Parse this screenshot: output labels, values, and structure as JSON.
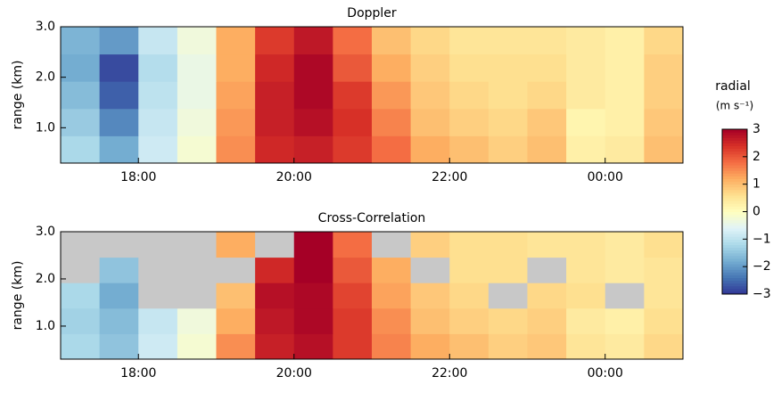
{
  "chart_data": [
    {
      "type": "heatmap",
      "title": "Doppler",
      "y_label": "range (km)",
      "x": [
        17.25,
        17.75,
        18.25,
        18.75,
        19.25,
        19.75,
        20.25,
        20.75,
        21.25,
        21.75,
        22.25,
        22.75,
        23.25,
        23.75,
        24.25,
        24.75
      ],
      "y": [
        0.57,
        1.11,
        1.65,
        2.19,
        2.73
      ],
      "values": [
        [
          -1.2,
          -1.8,
          -0.8,
          -0.2,
          1.5,
          2.5,
          2.6,
          2.3,
          1.8,
          1.2,
          1.0,
          0.8,
          1.0,
          0.3,
          0.4,
          1.0
        ],
        [
          -1.4,
          -2.2,
          -0.9,
          -0.3,
          1.4,
          2.6,
          2.8,
          2.4,
          1.6,
          1.0,
          0.8,
          0.7,
          0.9,
          0.2,
          0.3,
          0.9
        ],
        [
          -1.6,
          -2.6,
          -1.0,
          -0.4,
          1.3,
          2.6,
          2.9,
          2.3,
          1.4,
          0.9,
          0.7,
          0.6,
          0.7,
          0.4,
          0.3,
          0.8
        ],
        [
          -1.8,
          -2.8,
          -1.1,
          -0.4,
          1.2,
          2.5,
          2.9,
          2.0,
          1.2,
          0.8,
          0.6,
          0.6,
          0.6,
          0.4,
          0.3,
          0.8
        ],
        [
          -1.7,
          -2.0,
          -0.9,
          -0.3,
          1.2,
          2.3,
          2.7,
          1.8,
          1.0,
          0.7,
          0.5,
          0.5,
          0.5,
          0.4,
          0.3,
          0.7
        ]
      ],
      "xlim": [
        17.0,
        25.0
      ],
      "ylim": [
        0.3,
        3.0
      ],
      "xticks": [
        {
          "value": 18,
          "label": "18:00"
        },
        {
          "value": 20,
          "label": "20:00"
        },
        {
          "value": 22,
          "label": "22:00"
        },
        {
          "value": 24,
          "label": "00:00"
        }
      ],
      "yticks": [
        {
          "value": 1,
          "label": "1.0"
        },
        {
          "value": 2,
          "label": "2.0"
        },
        {
          "value": 3,
          "label": "3.0"
        }
      ]
    },
    {
      "type": "heatmap",
      "title": "Cross-Correlation",
      "y_label": "range (km)",
      "x": [
        17.25,
        17.75,
        18.25,
        18.75,
        19.25,
        19.75,
        20.25,
        20.75,
        21.25,
        21.75,
        22.25,
        22.75,
        23.25,
        23.75,
        24.25,
        24.75
      ],
      "y": [
        0.57,
        1.11,
        1.65,
        2.19,
        2.73
      ],
      "values": [
        [
          -1.2,
          -1.5,
          -0.8,
          -0.2,
          1.5,
          2.6,
          2.8,
          2.3,
          1.6,
          1.2,
          1.0,
          0.8,
          0.9,
          0.5,
          0.4,
          0.7
        ],
        [
          -1.3,
          -1.6,
          -0.9,
          -0.3,
          1.2,
          2.7,
          2.9,
          2.3,
          1.5,
          1.0,
          0.8,
          0.7,
          0.8,
          0.4,
          0.3,
          0.6
        ],
        [
          -1.2,
          -1.8,
          null,
          null,
          1.0,
          2.8,
          2.9,
          2.2,
          1.3,
          0.9,
          0.7,
          null,
          0.7,
          0.6,
          null,
          0.5
        ],
        [
          null,
          -1.5,
          null,
          null,
          null,
          2.5,
          3.0,
          2.0,
          1.2,
          null,
          0.6,
          0.6,
          null,
          0.5,
          0.4,
          0.5
        ],
        [
          null,
          null,
          null,
          null,
          1.2,
          null,
          3.0,
          1.8,
          null,
          0.8,
          0.6,
          0.6,
          0.5,
          0.5,
          0.4,
          0.6
        ]
      ],
      "xlim": [
        17.0,
        25.0
      ],
      "ylim": [
        0.3,
        3.0
      ],
      "xticks": [
        {
          "value": 18,
          "label": "18:00"
        },
        {
          "value": 20,
          "label": "20:00"
        },
        {
          "value": 22,
          "label": "22:00"
        },
        {
          "value": 24,
          "label": "00:00"
        }
      ],
      "yticks": [
        {
          "value": 1,
          "label": "1.0"
        },
        {
          "value": 2,
          "label": "2.0"
        },
        {
          "value": 3,
          "label": "3.0"
        }
      ]
    }
  ],
  "colorbar": {
    "label": "radial",
    "unit": "(m s⁻¹)",
    "clim": [
      -3,
      3
    ],
    "colors": [
      "#313695",
      "#4575b4",
      "#74add1",
      "#abd9e9",
      "#e0f3f8",
      "#ffffbf",
      "#fee090",
      "#fdae61",
      "#f46d43",
      "#d73027",
      "#a50026"
    ],
    "missing_color": "#c8c8c8",
    "ticks": [
      {
        "value": -3,
        "label": "−3"
      },
      {
        "value": -2,
        "label": "−2"
      },
      {
        "value": -1,
        "label": "−1"
      },
      0,
      1,
      2,
      3
    ]
  }
}
